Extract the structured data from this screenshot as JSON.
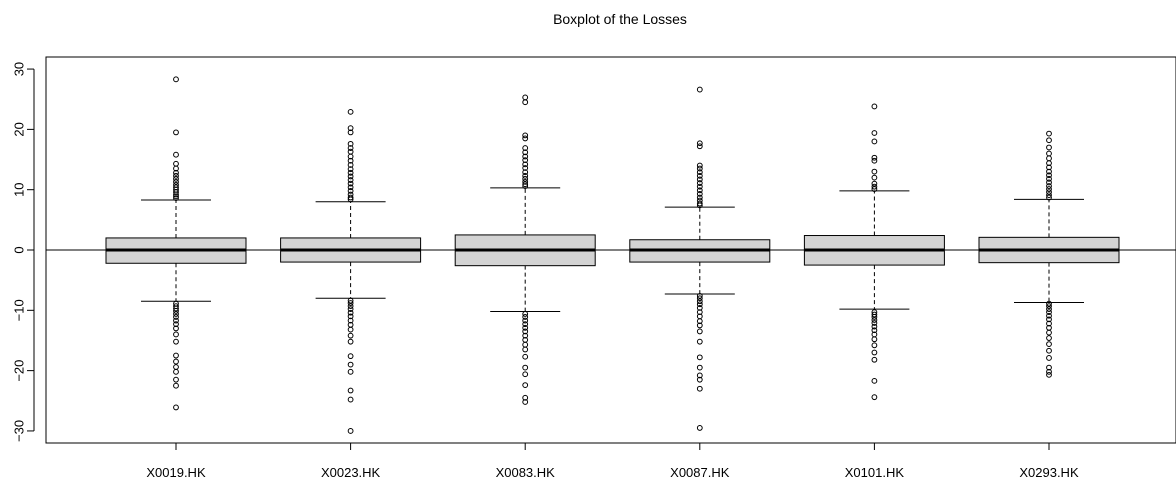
{
  "chart_data": {
    "type": "boxplot",
    "title": "Boxplot of the Losses",
    "xlabel": "",
    "ylabel": "",
    "ylim": [
      -32,
      32
    ],
    "yticks": [
      -30,
      -20,
      -10,
      0,
      10,
      20,
      30
    ],
    "reference_line": 0,
    "grid": false,
    "legend": "none",
    "colors": {
      "box_fill": "#d3d3d3",
      "stroke": "#000000",
      "background": "#ffffff"
    },
    "categories": [
      "X0019.HK",
      "X0023.HK",
      "X0083.HK",
      "X0087.HK",
      "X0101.HK",
      "X0293.HK"
    ],
    "boxes": [
      {
        "name": "X0019.HK",
        "whisker_low": -8.5,
        "q1": -2.2,
        "median": 0.0,
        "q3": 2.0,
        "whisker_high": 8.3,
        "outliers": [
          28.3,
          19.5,
          15.8,
          14.3,
          13.5,
          12.8,
          12.3,
          11.8,
          11.3,
          10.8,
          10.4,
          10.0,
          9.6,
          9.2,
          8.9,
          8.6,
          -8.9,
          -9.3,
          -9.7,
          -10.1,
          -10.6,
          -11.1,
          -11.7,
          -12.3,
          -13.0,
          -14.0,
          -15.2,
          -17.5,
          -18.5,
          -19.4,
          -20.2,
          -21.5,
          -22.5,
          -26.1
        ]
      },
      {
        "name": "X0023.HK",
        "whisker_low": -8.0,
        "q1": -2.0,
        "median": 0.0,
        "q3": 2.0,
        "whisker_high": 8.0,
        "outliers": [
          22.9,
          20.2,
          19.5,
          17.6,
          16.9,
          16.3,
          15.5,
          14.8,
          14.1,
          13.4,
          12.8,
          12.2,
          11.6,
          11.0,
          10.4,
          9.8,
          9.2,
          8.7,
          8.4,
          -8.4,
          -8.8,
          -9.3,
          -9.8,
          -10.4,
          -11.0,
          -11.7,
          -12.4,
          -13.2,
          -14.2,
          -15.2,
          -17.6,
          -19.0,
          -20.2,
          -23.3,
          -24.8,
          -30.0
        ]
      },
      {
        "name": "X0083.HK",
        "whisker_low": -10.2,
        "q1": -2.6,
        "median": 0.0,
        "q3": 2.5,
        "whisker_high": 10.3,
        "outliers": [
          25.3,
          24.5,
          19.0,
          18.5,
          16.9,
          16.2,
          15.5,
          14.9,
          14.2,
          13.6,
          12.9,
          12.3,
          11.8,
          11.3,
          10.9,
          10.6,
          -10.6,
          -11.1,
          -11.7,
          -12.3,
          -12.9,
          -13.5,
          -14.2,
          -14.9,
          -15.7,
          -16.5,
          -17.7,
          -19.5,
          -20.6,
          -22.4,
          -24.5,
          -25.2
        ]
      },
      {
        "name": "X0087.HK",
        "whisker_low": -7.3,
        "q1": -2.0,
        "median": 0.0,
        "q3": 1.7,
        "whisker_high": 7.1,
        "outliers": [
          26.6,
          17.7,
          17.2,
          14.0,
          13.5,
          12.9,
          12.3,
          11.7,
          11.1,
          10.5,
          9.9,
          9.3,
          8.7,
          8.2,
          7.7,
          7.4,
          -7.6,
          -8.0,
          -8.5,
          -9.0,
          -9.6,
          -10.3,
          -11.0,
          -11.8,
          -12.5,
          -13.5,
          -15.2,
          -17.8,
          -19.5,
          -20.8,
          -21.5,
          -23.0,
          -29.5
        ]
      },
      {
        "name": "X0101.HK",
        "whisker_low": -9.8,
        "q1": -2.5,
        "median": 0.0,
        "q3": 2.4,
        "whisker_high": 9.8,
        "outliers": [
          23.8,
          19.4,
          18.0,
          15.3,
          14.8,
          13.0,
          12.0,
          11.0,
          10.5,
          10.1,
          -10.3,
          -10.7,
          -11.1,
          -11.6,
          -12.1,
          -12.7,
          -13.3,
          -14.0,
          -14.8,
          -15.8,
          -17.0,
          -18.2,
          -21.7,
          -24.4
        ]
      },
      {
        "name": "X0293.HK",
        "whisker_low": -8.7,
        "q1": -2.1,
        "median": 0.0,
        "q3": 2.1,
        "whisker_high": 8.4,
        "outliers": [
          19.3,
          18.2,
          17.0,
          16.0,
          15.2,
          14.4,
          13.7,
          13.0,
          12.4,
          11.8,
          11.2,
          10.6,
          10.1,
          9.6,
          9.1,
          8.7,
          -8.9,
          -9.3,
          -9.8,
          -10.3,
          -10.9,
          -11.5,
          -12.2,
          -12.9,
          -13.7,
          -14.6,
          -15.6,
          -16.7,
          -17.9,
          -19.5,
          -20.2,
          -20.7
        ]
      }
    ]
  }
}
